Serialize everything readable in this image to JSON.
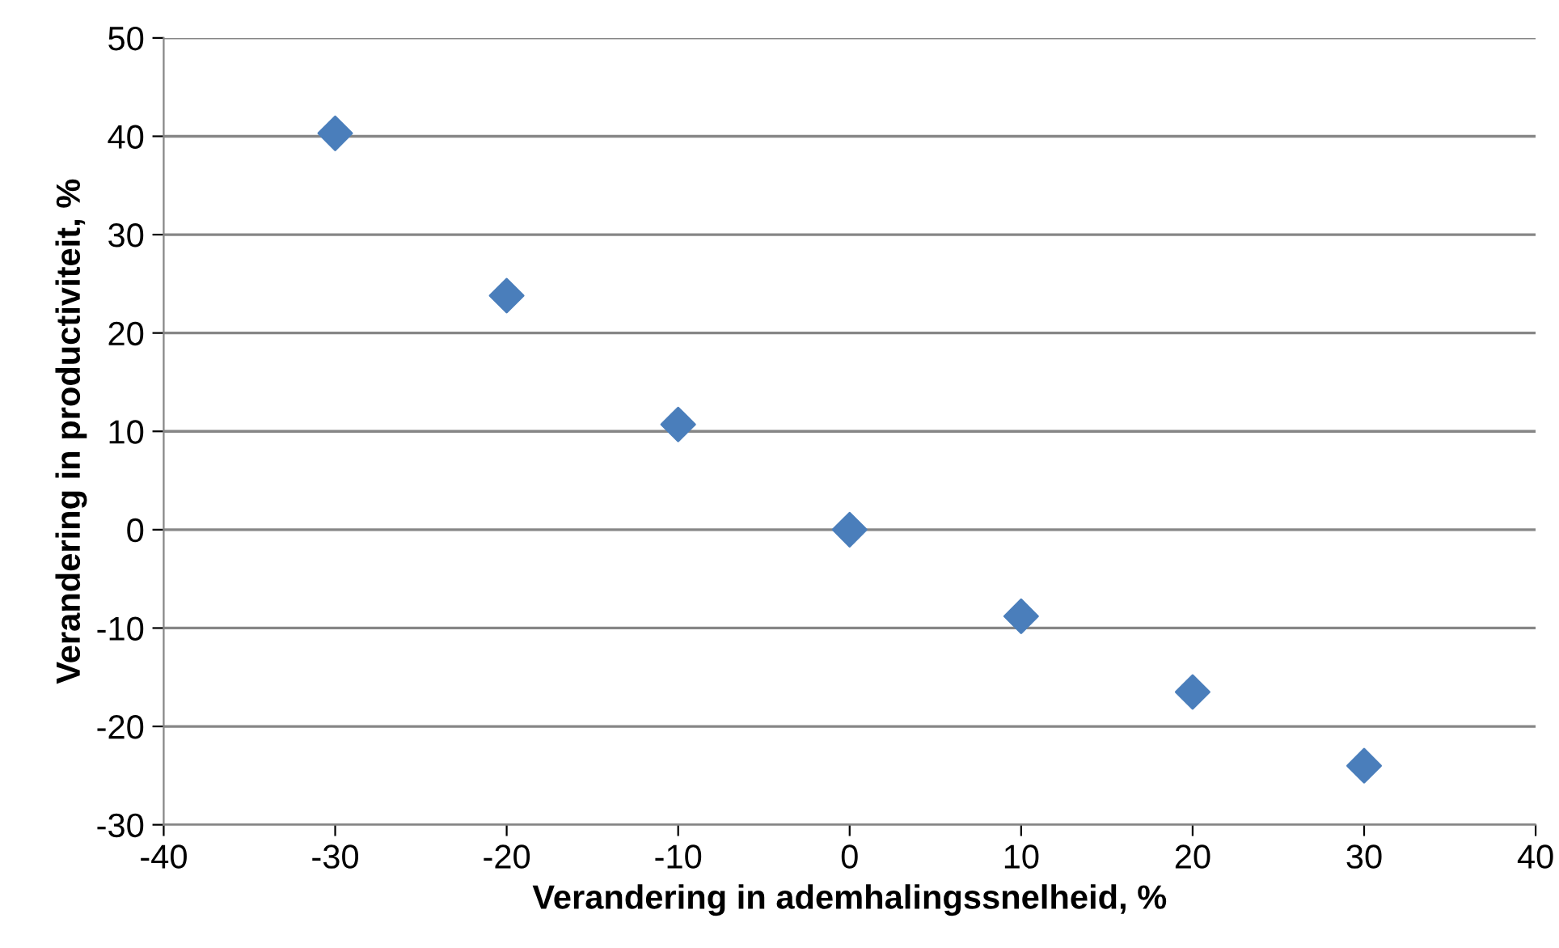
{
  "chart_data": {
    "type": "scatter",
    "xlabel": "Verandering in ademhalingssnelheid, %",
    "ylabel": "Verandering in productiviteit, %",
    "x": [
      -30,
      -20,
      -10,
      0,
      10,
      20,
      30
    ],
    "series": [
      {
        "color": "#4a7ebb",
        "values": [
          40.3,
          23.8,
          10.7,
          0,
          -8.8,
          -16.5,
          -24
        ]
      }
    ],
    "xlim": [
      -40,
      40
    ],
    "xticks": [
      -40,
      -30,
      -20,
      -10,
      0,
      10,
      20,
      30,
      40
    ],
    "ylim": [
      -30,
      50
    ],
    "yticks": [
      -30,
      -20,
      -10,
      0,
      10,
      20,
      30,
      40,
      50
    ],
    "grid": "y",
    "marker": "diamond"
  }
}
